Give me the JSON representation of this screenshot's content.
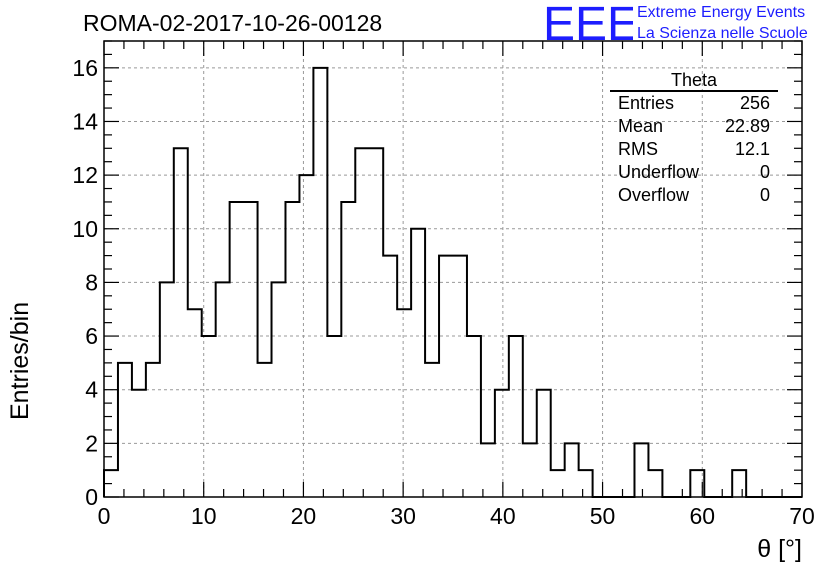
{
  "header": {
    "title": "ROMA-02-2017-10-26-00128",
    "logo_letters": "EEE",
    "logo_line1": "Extreme Energy Events",
    "logo_line2": "La Scienza nelle Scuole",
    "logo_color": "#1d1dff"
  },
  "stats": {
    "title": "Theta",
    "rows": [
      {
        "label": "Entries",
        "value": "256"
      },
      {
        "label": "Mean",
        "value": "22.89"
      },
      {
        "label": "RMS",
        "value": "12.1"
      },
      {
        "label": "Underflow",
        "value": "0"
      },
      {
        "label": "Overflow",
        "value": "0"
      }
    ]
  },
  "chart_data": {
    "type": "bar",
    "histogram": true,
    "title": "ROMA-02-2017-10-26-00128",
    "xlabel": "θ [°]",
    "ylabel": "Entries/bin",
    "xlim": [
      0,
      70
    ],
    "ylim": [
      0,
      17
    ],
    "grid": true,
    "bin_width": 1.4,
    "bin_start": 0,
    "x_ticks": [
      0,
      10,
      20,
      30,
      40,
      50,
      60,
      70
    ],
    "y_ticks": [
      0,
      2,
      4,
      6,
      8,
      10,
      12,
      14,
      16
    ],
    "values": [
      1,
      5,
      4,
      5,
      8,
      13,
      7,
      6,
      8,
      11,
      11,
      5,
      8,
      11,
      12,
      16,
      6,
      11,
      13,
      13,
      9,
      7,
      10,
      5,
      9,
      9,
      6,
      2,
      4,
      6,
      2,
      4,
      1,
      2,
      1,
      0,
      0,
      0,
      2,
      1,
      0,
      0,
      1,
      0,
      0,
      1,
      0,
      0,
      0,
      0
    ]
  }
}
